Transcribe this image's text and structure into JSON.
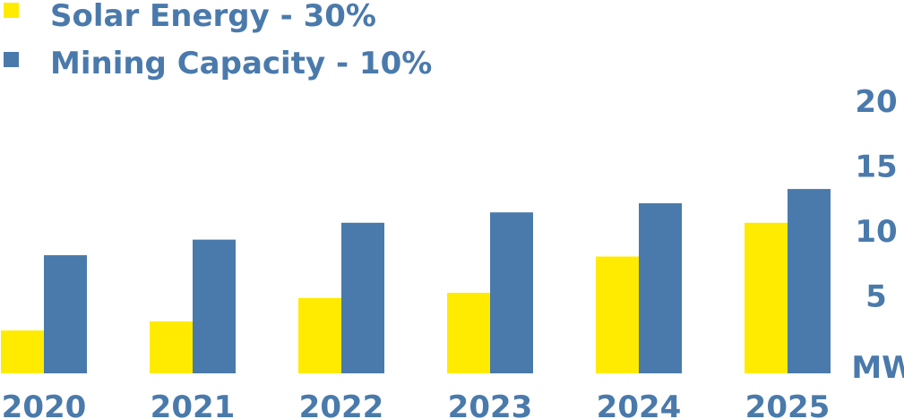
{
  "colors": {
    "solar": "#FFEB00",
    "mining": "#4A7AAB",
    "text": "#4A7AAB"
  },
  "legend": {
    "placement": "top-left",
    "items": [
      {
        "label": "Solar Energy - 30%",
        "color": "#FFEB00"
      },
      {
        "label": "Mining Capacity - 10%",
        "color": "#4A7AAB"
      }
    ]
  },
  "chart_data": {
    "type": "bar",
    "title": "",
    "xlabel": "",
    "ylabel": "",
    "unit_label": "MW",
    "grid": false,
    "y_axis_position": "right",
    "ylim": [
      0,
      20
    ],
    "y_ticks": [
      5,
      10,
      15,
      20
    ],
    "categories": [
      "2020",
      "2021",
      "2022",
      "2023",
      "2024",
      "2025"
    ],
    "series": [
      {
        "name": "Solar Energy - 30%",
        "color": "#FFEB00",
        "values": [
          3.3,
          4.0,
          5.8,
          6.2,
          9.0,
          11.6
        ]
      },
      {
        "name": "Mining Capacity - 10%",
        "color": "#4A7AAB",
        "values": [
          9.1,
          10.3,
          11.6,
          12.4,
          13.1,
          14.2
        ]
      }
    ]
  }
}
